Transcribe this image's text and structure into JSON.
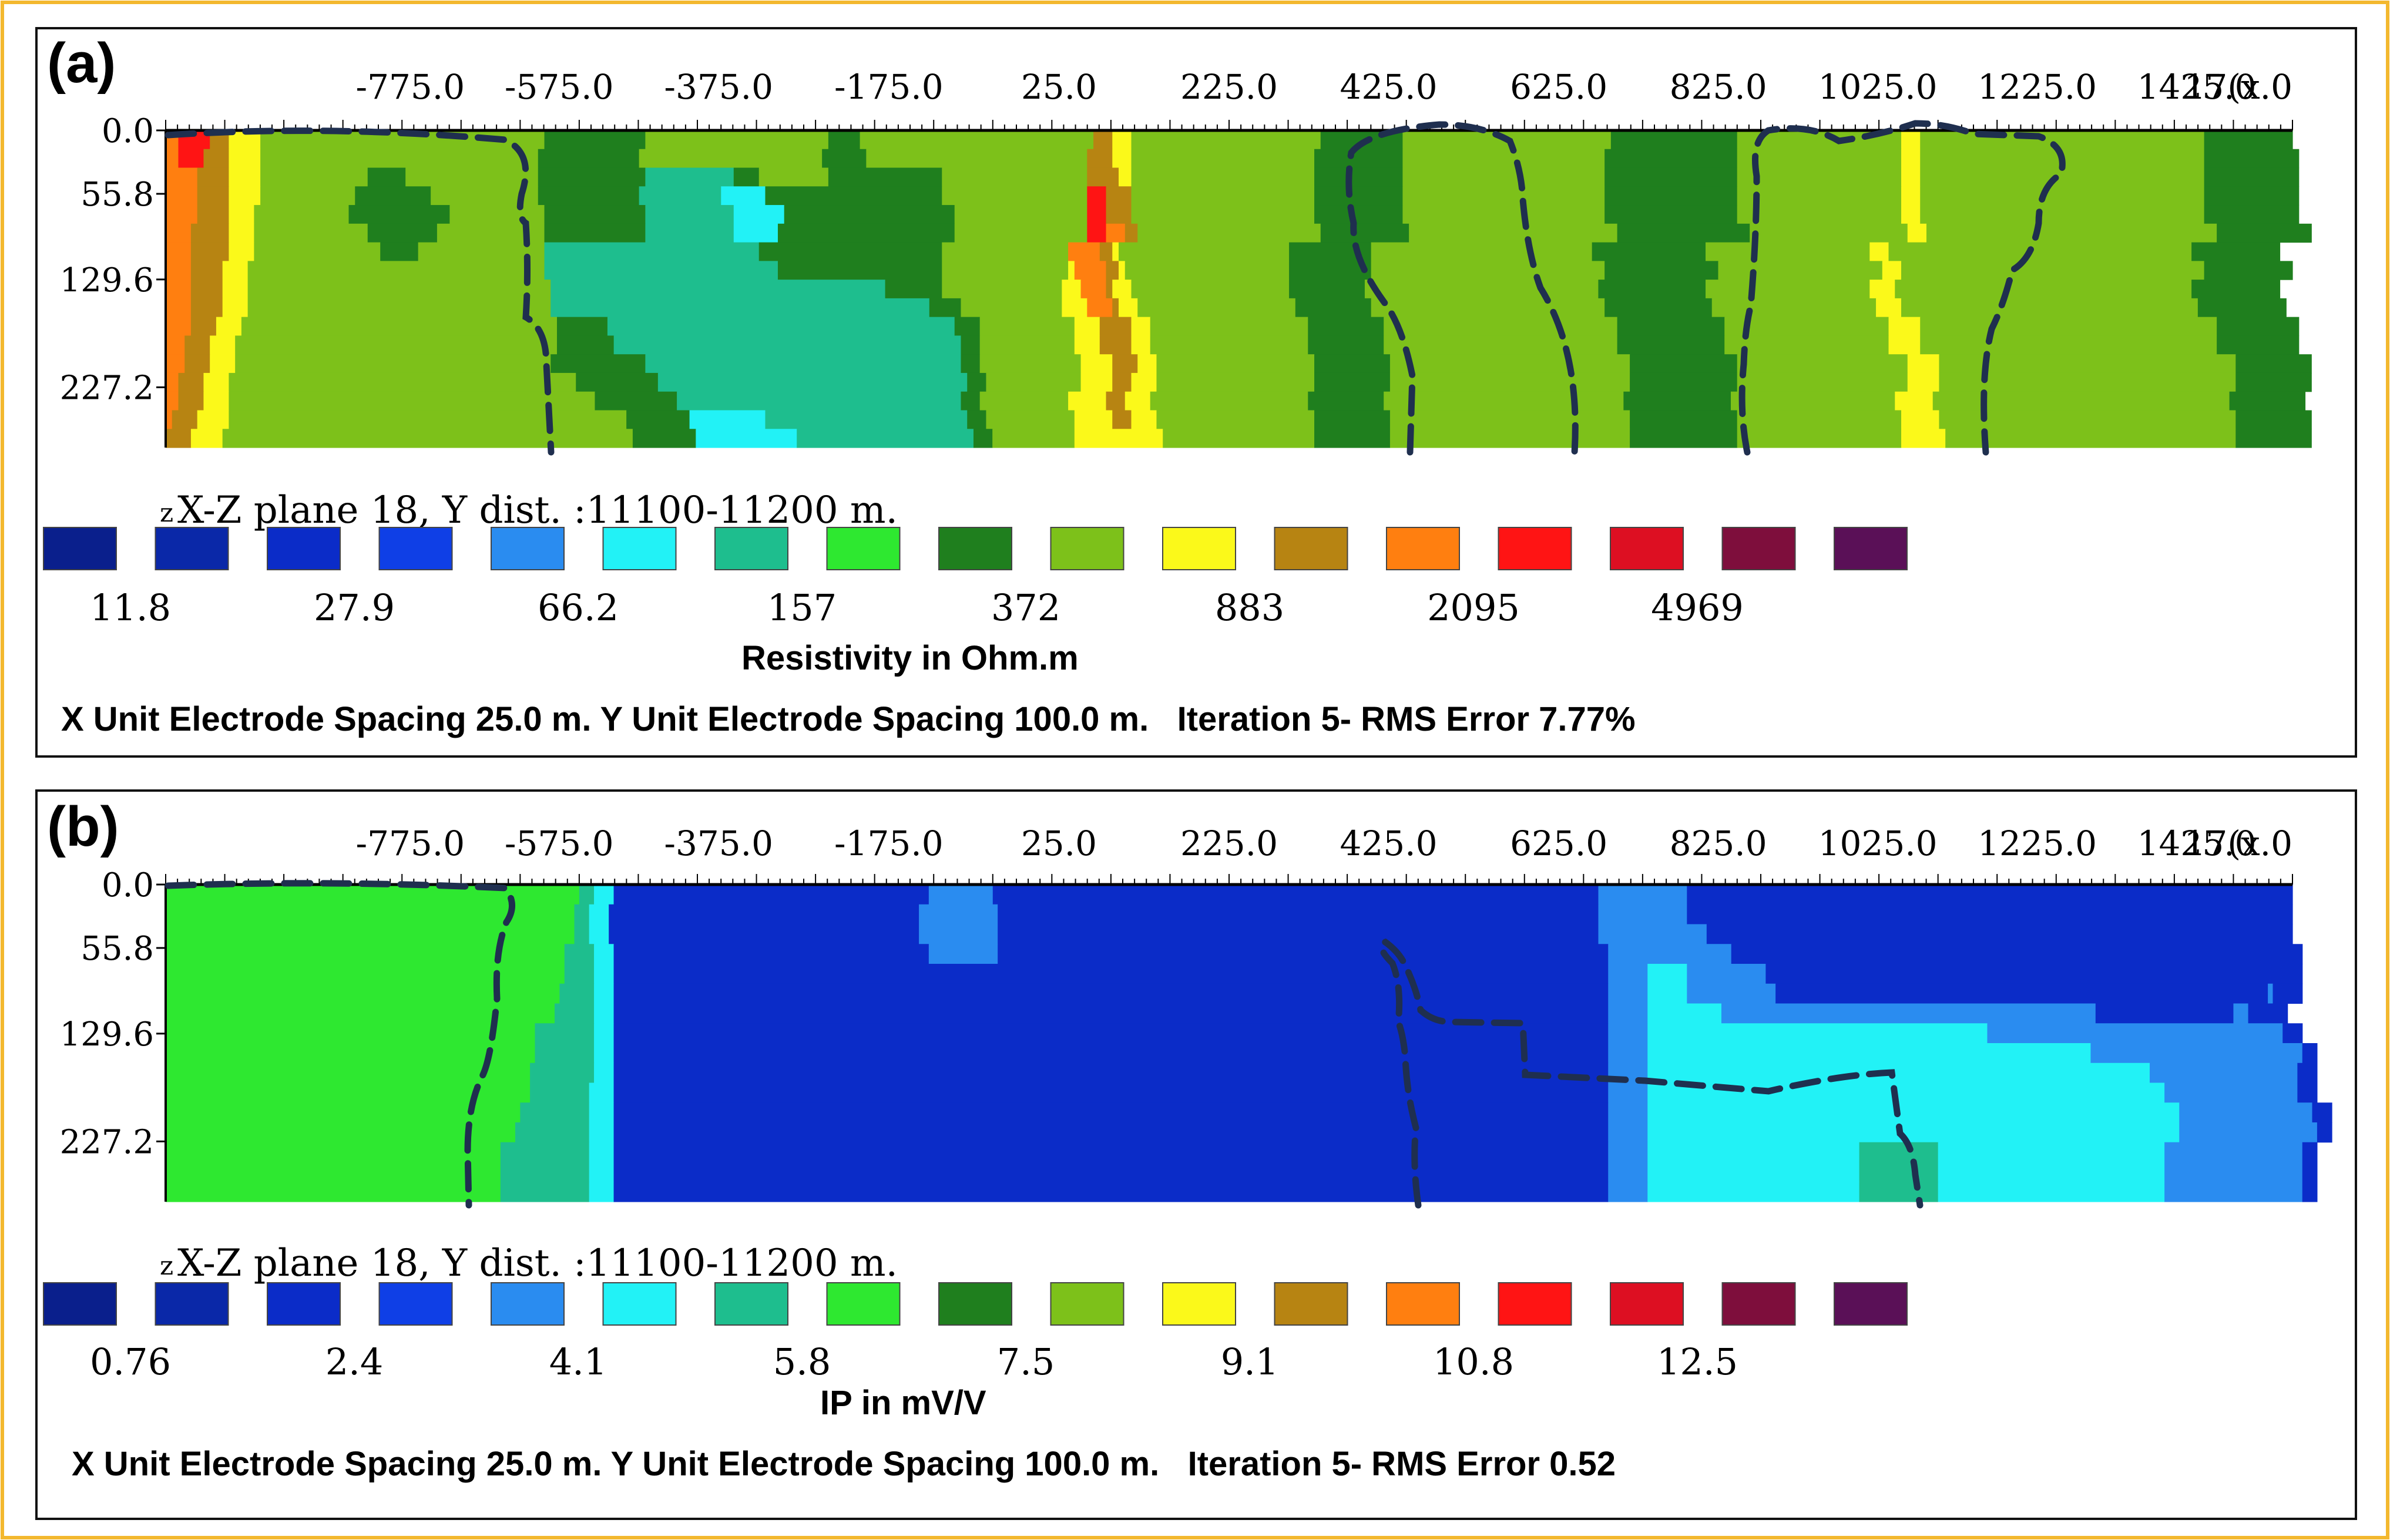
{
  "figure": {
    "border_color": "#F3B82E",
    "dash_color": "#1F2F4F"
  },
  "palette": [
    "#0A1F8C",
    "#0A28A8",
    "#0B2CC8",
    "#0F3FE6",
    "#2A8CF0",
    "#22F2F6",
    "#1EBE8E",
    "#2EE830",
    "#1F7F1E",
    "#7DC11A",
    "#FBF91A",
    "#B78412",
    "#FF7F10",
    "#FF1414",
    "#DD0F22",
    "#7E0E3C",
    "#5A1057"
  ],
  "x_ticks": [
    "-775.0",
    "-575.0",
    "-375.0",
    "-175.0",
    "25.0",
    "225.0",
    "425.0",
    "625.0",
    "825.0",
    "1025.0",
    "1225.0",
    "1425.0",
    "17(x.0"
  ],
  "y_ticks": [
    "0.0",
    "55.8",
    "129.6",
    "227.2"
  ],
  "chart_data": [
    {
      "type": "heatmap",
      "panel_label": "(a)",
      "plane_label": "X-Z plane 18, Y dist. :11100-11200 m.",
      "axis_letter": "z",
      "legend_values": [
        "11.8",
        "27.9",
        "66.2",
        "157",
        "372",
        "883",
        "2095",
        "4969"
      ],
      "legend_title": "Resistivity in Ohm.m",
      "footer": "X Unit Electrode Spacing 25.0 m. Y Unit Electrode Spacing 100.0 m.   Iteration 5- RMS Error 7.77%",
      "x_range": [
        -1000,
        1700
      ],
      "depth_ticks": [
        0.0,
        55.8,
        129.6,
        227.2
      ],
      "grid": [
        "CCDDDDDBBBAAAAA999999999999999999999999999999999999999999999888888888888888899999999999999999999999999999888889999999999999999999999999999999999999BBBAAA99999999999999999999999999999988888888888889999999999999999999999999999999998888888888888888888899999999999999999999999999AAA99999999999999999999999999999999999999999999988888888888888",
        "CCDDDDBBBBAAAAA99999999999999999999999999999999999999999999888888888888888899999999999999999999999999999888888899999999999999999999999999999999999BBBBAAA99999999999999999999999999999888888888888889999999999999999999999999999999988888888888888888888899999999999999999999999999AAA999999999999999999999999999999999999999999999888888888888888",
        "CCCCCBBBBBAAAAA99999999999999999888888999999999999999999999888888888888888886666666666666688889999999999988888888888888888899999999999999999999999BBBBBAA99999999999999999999999999999888888888888889999999999999999999999999999999988888888888888888888899999999999999999999999999AAA999999999999999999999999999999999999999999999888888888888888",
        "CCCCCBBBBBAAAAA99999999999999988888888888899999999999999999888888888888888866666666666665555555888888888888888888888888888899999999999999999999999DDDBBBB99999999999999999999999999999888888888888889999999999999999999999999999999988888888888888888888899999999999999999999999999AAA999999999999999999999999999999999999999999999888888888888888",
        "CCCCCBBBBBAAAA999999999999999888888888888888899999999999999988888888888888886666666666666655555555888888888888888888888888888999999999999999999999DDDBBBB99999999999999999999999999999888888888888889999999999999999999999999999999988888888888888888888899999999999999999999999999AAA999999999999999999999999999999999999999999999888888888888888",
        "CCCCBBBBBBAAAA999999999999999999888888888889999999999999999988888888888888886666666666666655555558888888888888888888888888888999999999999999999999DDDCCCBB99999999999999999999999999999888888888888889999999999999999999999999999999998888888888888888888889999999999999999999999999AAA9999999999999999999999999999999999999999999999888888888888888",
        "CCCCBBBBBBAAAA999999999999999999998888889999999999999999999966666666666666666666666666666666668888888888888888888888888888899999999999999999999CCCCCBBA99999999999999999999999999988888888888889999999999999999999999999999999999988888888888888888899999999999999999999999999AAA99999999999999999999999999999999999999999999999988888888888888",
        "CCCCBBBBBAAAA9999999999999999999999999999999999999999999999966666666666666666666666666666666666668888888888888888888888888899999999999999999999ACCCCCBBA999999999999999999999999998888888888888999999999999999999999999999999999999988888888888888888899999999999999999999999999AAA99999999999999999999999999999999999999999999999988888888888888",
        "CCCCBBBBBAAAA999999999999999999999999999999999999999999999999666666666666666666666666666666666666666666666666666668888888889999999999999999999AAACCCCBAAA999999999999999999999999988888888888899999999999999999999999999999999999998888888888888888899999999999999999999999999AAAA9999999999999999999999999999999999999999999999988888888888888",
        "CCCCBBBBBAAAA999999999999999999999999999999999999999999999999666666666666666666666666666666666666666666666666666666666666888889999999999999999AAAACCCCBAAA999999999999999999999999988888888888899999999999999999999999999999999999998888888888888888899999999999999999999999999AAAA9999999999999999999999999999999999999999999999988888888888888",
        "CCCCBBBBAAAA999999999999999999999999999999999999999999999999998888888866666666666666666666666666666666666666666666666666666668888999999999999999AAAABBBBBAAA999999999999999999999999988888888888899999999999999999999999999999999999998888888888888888899999999999999999999999999AAAAA999999999999999999999999999999999999999999999998888888888888",
        "CCCBBBBAAAA9999999999999999999999999999999999999999999999999998888888886666666666666666666666666666666666666666666666666666666888999999999999999AAAABBBBBAAA999999999999999999999999988888888888899999999999999999999999999999999999998888888888888888899999999999999999999999999AAAAA999999999999999999999999999999999999999999999998888888888888",
        "CCCBBBBAAAA99999999999999999999999999999999999999999999999999888888888888888666666666666666666666666666666666666666666666666668889999999999999999AAAAABBBBAAA99999999999999999999999998888888888889999999999999999999999999999999999999988888888888888888999999999999999999999999999AAAAA99999999999999999999999999999999999999999999999888888888888",
        "CCBBBBAAAA999999999999999999999999999999999999999999999999999999988888888888886666666666666666666666666666666666666666666666666888999999999999999AAAAABBBAAAA99999999999999999999999998888888888889999999999999999999999999999999999999988888888888888888999999999999999999999999999AAAAA99999999999999999999999999999999999999999999999888888888888",
        "CCBBBBAAAA9999999999999999999999999999999999999999999999999999999999888888888888866666666666666666666666666666666666666666666688899999999999999AAAAAABBBAAAA9999999999999999999999999888888888888999999999999999999999999999999999999998888888888888888899999999999999999999999999AAAAAA99999999999999999999999999999999999999999999999888888888888",
        "CBBBBAAAAA99999999999999999999999999999999999999999999999999999999999999988888888885555555555556666666666666666666666666666666688899999999999999AAAAAABBBAAAA9999999999999999999999999888888888888999999999999999999999999999999999999998888888888888888899999999999999999999999999AAAAAA99999999999999999999999999999999999999999999999888888888888",
        "BBBBAAAAA999999999999999999999999999999999999999999999999999999999999999998888888888555555555555555566666666666666666666666666668889999999999999AAAAAAAAAAAAAA999999999999999999999999888888888888999999999999999999999999999999999999998888888888888888899999999999999999999999999AAAAAAA9999999999999999999999999999999999999999999999888888888888"
      ]
    },
    {
      "type": "heatmap",
      "panel_label": "(b)",
      "plane_label": "X-Z plane 18, Y dist. :11100-11200 m.",
      "axis_letter": "z",
      "legend_values": [
        "0.76",
        "2.4",
        "4.1",
        "5.8",
        "7.5",
        "9.1",
        "10.8",
        "12.5"
      ],
      "legend_title": "IP in mV/V",
      "footer": "X Unit Electrode Spacing 25.0 m. Y Unit Electrode Spacing 100.0 m.   Iteration 5- RMS Error 0.52",
      "x_range": [
        -1000,
        1700
      ],
      "depth_ticks": [
        0.0,
        55.8,
        129.6,
        227.2
      ],
      "grid": [
        "777777777777777777777777777777777777777777777777777777777777777777777777777777777777666555522222222222222222222222222222222222222222222222222222222222222224444444444444222222222222222222222222222222222222222222222222222222222222222222222222222222222222222222222222222222222222222222222222222444444444444444444222222222222222222222222222222222222222222222222222222222222222222222222222222222222222222222222222222222222222222222222222",
        "777777777777777777777777777777777777777777777777777777777777777777777777777777777776665555222222222222222222222222222222222222222222222222222222222222222444444444444444422222222222222222222222222222222222222222222222222222222222222222222222222222222222222222222222222222222222222222222222222444444444444444444222222222222222222222222222222222222222222222222222222222222222222222222222222222222222222222222222222222222222222222222222",
        "777777777777777777777777777777777777777777777777777777777777777777777777777777777776665555222222222222222222222222222222222222222222222222222222222222222444444444444444422222222222222222222222222222222222222222222222222222222222222222222222222222222222222222222222222222222222222222222222222444444444444444444444422222222222222222222222222222222222222222222222222222222222222222222222222222222222222222222222222222222222222222222222",
        "77777777777777777777777777777777777777777777777777777777777777777777777777777777766666655552222222222222222222222222222222222222222222222222222222222222222444444444444442222222222222222222222222222222222222222222222222222222222222222222222222222222222222222222222222222222222222222222222222222444444444444444444444444422222222222222222222222222222222222222222222222222222222222222222222222222222222222222222222222222222222222222222222",
        "77777777777777777777777777777777777777777777777777777777777777777777777777777777766666655552222222222222222222222222222222222222222222222222222222222222222222222222222222222222222222222222222222222222222222222222222222222222222222222222222222222222222222222222222222222222222222222222222222222444444445555555544444444444444442222222222222222222222222222222222222222222222222222222222222222222222222222222222222222222222222222222222222",
        "77777777777777777777777777777777777777777777777777777777777777777777777777777777666666655552222222222222222222222222222222222222222222222222222222222222222222222222222222222222222222222222222222222222222222222222222222222222222222222222222222222222222222222222222222222222222222222222222222222444444445555555544444444444444444422222222222222222222222222222222222222222222222222222222222222222222222222222222222222222222222222224222222",
        "77777777777777777777777777777777777777777777777777777777777777777777777777777776666666655552222222222222222222222222222222222222222222222222222222222222222222222222222222222222222222222222222222222222222222222222222222222222222222222222222222222222222222222222222222222222222222222222222222222444444445555555555555554444444444444444444444444444444444444444444444444444444444444444444444444444222222222222222222222222222244422222222",
        "77777777777777777777777777777777777777777777777777777777777777777777777777766666666666655552222222222222222222222222222222222222222222222222222222222222222222222222222222222222222222222222222222222222222222222222222222222222222222222222222222222222222222222222222222222222222222222222222222222444444445555555555555555555555555555555555555555555555555555555555555555555554444444444444444444444444444444444444444444444444444444444442222",
        "77777777777777777777777777777777777777777777777777777777777777777777777777766666666666655552222222222222222222222222222222222222222222222222222222222222222222222222222222222222222222222222222222222222222222222222222222222222222222222222222222222222222222222222222222222222222222222222222222222444444445555555555555555555555555555555555555555555555555555555555555555555555555555555555555555554444444444444444444444444444444444444444444222",
        "77777777777777777777777777777777777777777777777777777777777777777777777777666666666666655552222222222222222222222222222222222222222222222222222222222222222222222222222222222222222222222222222222222222222222222222222222222222222222222222222222222222222222222222222222222222222222222222222222222444444445555555555555555555555555555555555555555555555555555555555555555555555555555555555555555555555555555554444444444444444444444444444442222",
        "77777777777777777777777777777777777777777777777777777777777777777777777777666666666666555552222222222222222222222222222222222222222222222222222222222222222222222222222222222222222222222222222222222222222222222222222222222222222222222222222222222222222222222222222222222222222222222222222222222444444445555555555555555555555555555555555555555555555555555555555555555555555555555555555555555555555555555555554444444444444444444444444442222",
        "77777777777777777777777777777777777777777777777777777777777777777777777766666666666666555552222222222222222222222222222222222222222222222222222222222222222222222222222222222222222222222222222222222222222222222222222222222222222222222222222222222222222222222222222222222222222222222222222222222444444445555555555555555555555555555555555555555555555555555555555555555555555555555555555555555555555555555555555554444444444444444444444444442222",
        "77777777777777777777777777777777777777777777777777777777777777777777777666666666666666555552222222222222222222222222222222222222222222222222222222222222222222222222222222222222222222222222222222222222222222222222222222222222222222222222222222222222222222222222222222222222222222222222222222222444444445555555555555555555555555555555555555555555555555555555555555555555555555555555555555555555555555555555555554444444444444444444444444444222",
        "77777777777777777777777777777777777777777777777777777777777777777777666666666666666666555552222222222222222222222222222222222222222222222222222222222222222222222222222222222222222222222222222222222222222222222222222222222222222222222222222222222222222222222222222222222222222222222222222222222444444445555555555555555555555555555555555555555555666666666666666655555555555555555555555555555555555555555555554444444444444444444444444444222",
        "77777777777777777777777777777777777777777777777777777777777777777777666666666666666666555552222222222222222222222222222222222222222222222222222222222222222222222222222222222222222222222222222222222222222222222222222222222222222222222222222222222222222222222222222222222222222222222222222222222444444445555555555555555555555555555555555555555555666666666666666655555555555555555555555555555555555555555555554444444444444444444444444444222",
        "77777777777777777777777777777777777777777777777777777777777777777777666666666666666666555552222222222222222222222222222222222222222222222222222222222222222222222222222222222222222222222222222222222222222222222222222222222222222222222222222222222222222222222222222222222222222222222222222222222444444445555555555555555555555555555555555555555555666666666666666655555555555555555555555555555555555555555555554444444444444444444444444444222"
      ]
    }
  ]
}
